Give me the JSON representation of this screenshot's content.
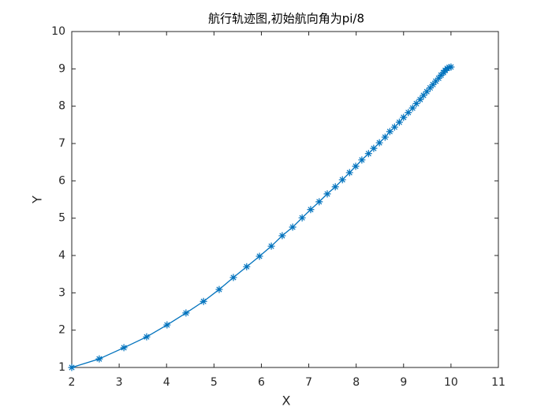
{
  "chart_data": {
    "type": "line",
    "title": "航行轨迹图,初始航向角为pi/8",
    "x_label": "X",
    "y_label": "Y",
    "x": [
      2,
      2.58,
      3.1,
      3.58,
      4.01,
      4.41,
      4.78,
      5.11,
      5.41,
      5.69,
      5.96,
      6.21,
      6.44,
      6.66,
      6.86,
      7.04,
      7.22,
      7.39,
      7.56,
      7.71,
      7.86,
      7.99,
      8.12,
      8.26,
      8.37,
      8.49,
      8.61,
      8.71,
      8.81,
      8.91,
      9.0,
      9.1,
      9.19,
      9.27,
      9.35,
      9.42,
      9.49,
      9.56,
      9.62,
      9.68,
      9.74,
      9.79,
      9.84,
      9.88,
      9.92,
      9.96,
      10.0
    ],
    "series": [
      {
        "color": "#0072BD",
        "marker": "asterisk",
        "values": [
          1,
          1.23,
          1.53,
          1.82,
          2.14,
          2.46,
          2.77,
          3.09,
          3.41,
          3.7,
          3.98,
          4.25,
          4.53,
          4.76,
          5.01,
          5.23,
          5.44,
          5.65,
          5.84,
          6.03,
          6.22,
          6.39,
          6.56,
          6.73,
          6.87,
          7.02,
          7.17,
          7.32,
          7.44,
          7.57,
          7.7,
          7.83,
          7.95,
          8.07,
          8.18,
          8.29,
          8.39,
          8.49,
          8.58,
          8.67,
          8.75,
          8.83,
          8.9,
          8.96,
          9.01,
          9.04,
          9.05
        ]
      }
    ],
    "xlim": [
      2,
      11
    ],
    "ylim": [
      1,
      10
    ],
    "xticks": [
      2,
      3,
      4,
      5,
      6,
      7,
      8,
      9,
      10,
      11
    ],
    "yticks": [
      1,
      2,
      3,
      4,
      5,
      6,
      7,
      8,
      9,
      10
    ],
    "grid": false
  }
}
